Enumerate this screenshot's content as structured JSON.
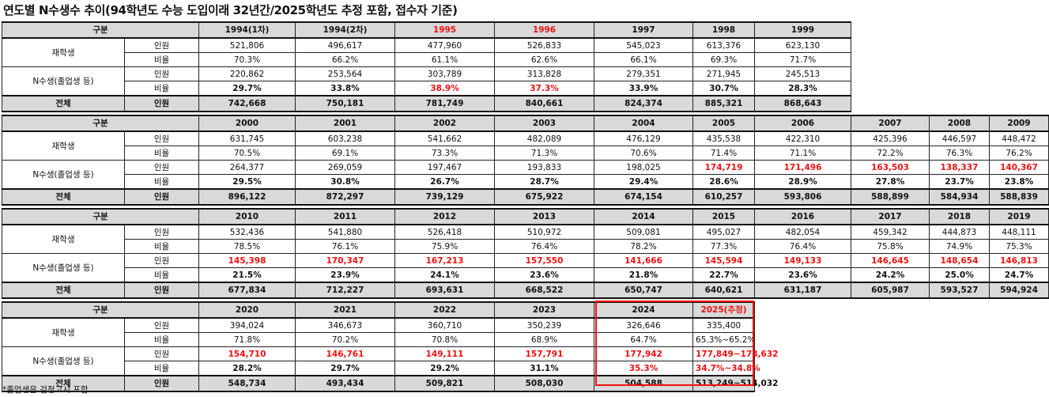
{
  "title": "연도별 N수생수 추이(94학년도 수능 도입이래 32년간/2025학년도 추정 포함, 접수자 기준)",
  "footnote": "*졸업생은 검정고시 포함",
  "labels": {
    "gubun": "구분",
    "jaehak": "재학생",
    "nsu": "N수생(졸업생 등)",
    "total": "전체",
    "inwon": "인원",
    "biyul": "비율"
  },
  "blocks": [
    {
      "years": [
        "1994(1차)",
        "1994(2차)",
        "1995",
        "1996",
        "1997",
        "1998",
        "1999"
      ],
      "jaehak_inwon": [
        "521,806",
        "496,617",
        "477,960",
        "526,833",
        "545,023",
        "613,376",
        "623,130"
      ],
      "jaehak_biyul": [
        "70.3%",
        "66.2%",
        "61.1%",
        "62.6%",
        "66.1%",
        "69.3%",
        "71.7%"
      ],
      "nsu_inwon": [
        "220,862",
        "253,564",
        "303,789",
        "313,828",
        "279,351",
        "271,945",
        "245,513"
      ],
      "nsu_biyul": [
        "29.7%",
        "33.8%",
        "38.9%",
        "37.3%",
        "33.9%",
        "30.7%",
        "28.3%"
      ],
      "total": [
        "742,668",
        "750,181",
        "781,749",
        "840,661",
        "824,374",
        "885,321",
        "868,643"
      ]
    },
    {
      "years": [
        "2000",
        "2001",
        "2002",
        "2003",
        "2004",
        "2005",
        "2006",
        "2007",
        "2008",
        "2009"
      ],
      "jaehak_inwon": [
        "631,745",
        "603,238",
        "541,662",
        "482,089",
        "476,129",
        "435,538",
        "422,310",
        "425,396",
        "446,597",
        "448,472"
      ],
      "jaehak_biyul": [
        "70.5%",
        "69.1%",
        "73.3%",
        "71.3%",
        "70.6%",
        "71.4%",
        "71.1%",
        "72.2%",
        "76.3%",
        "76.2%"
      ],
      "nsu_inwon": [
        "264,377",
        "269,059",
        "197,467",
        "193,833",
        "198,025",
        "174,719",
        "171,496",
        "163,503",
        "138,337",
        "140,367"
      ],
      "nsu_biyul": [
        "29.5%",
        "30.8%",
        "26.7%",
        "28.7%",
        "29.4%",
        "28.6%",
        "28.9%",
        "27.8%",
        "23.7%",
        "23.8%"
      ],
      "total": [
        "896,122",
        "872,297",
        "739,129",
        "675,922",
        "674,154",
        "610,257",
        "593,806",
        "588,899",
        "584,934",
        "588,839"
      ]
    },
    {
      "years": [
        "2010",
        "2011",
        "2012",
        "2013",
        "2014",
        "2015",
        "2016",
        "2017",
        "2018",
        "2019"
      ],
      "jaehak_inwon": [
        "532,436",
        "541,880",
        "526,418",
        "510,972",
        "509,081",
        "495,027",
        "482,054",
        "459,342",
        "444,873",
        "448,111"
      ],
      "jaehak_biyul": [
        "78.5%",
        "76.1%",
        "75.9%",
        "76.4%",
        "78.2%",
        "77.3%",
        "76.4%",
        "75.8%",
        "74.9%",
        "75.3%"
      ],
      "nsu_inwon": [
        "145,398",
        "170,347",
        "167,213",
        "157,550",
        "141,666",
        "145,594",
        "149,133",
        "146,645",
        "148,654",
        "146,813"
      ],
      "nsu_biyul": [
        "21.5%",
        "23.9%",
        "24.1%",
        "23.6%",
        "21.8%",
        "22.7%",
        "23.6%",
        "24.2%",
        "25.0%",
        "24.7%"
      ],
      "total": [
        "677,834",
        "712,227",
        "693,631",
        "668,522",
        "650,747",
        "640,621",
        "631,187",
        "605,987",
        "593,527",
        "594,924"
      ]
    },
    {
      "years": [
        "2020",
        "2021",
        "2022",
        "2023",
        "2024",
        "2025(추정)"
      ],
      "jaehak_inwon": [
        "394,024",
        "346,673",
        "360,710",
        "350,239",
        "326,646",
        "335,400"
      ],
      "jaehak_biyul": [
        "71.8%",
        "70.2%",
        "70.8%",
        "68.9%",
        "64.7%",
        "65.3%~65.2%"
      ],
      "nsu_inwon": [
        "154,710",
        "146,761",
        "149,111",
        "157,791",
        "177,942",
        "177,849~178,632"
      ],
      "nsu_biyul": [
        "28.2%",
        "29.7%",
        "29.2%",
        "31.1%",
        "35.3%",
        "34.7%~34.8%"
      ],
      "total": [
        "548,734",
        "493,434",
        "509,821",
        "508,030",
        "504,588",
        "513,249~514,032"
      ]
    }
  ],
  "colors": {
    "highlight": "#ee1111",
    "header_bg": "#d9d9d9"
  }
}
